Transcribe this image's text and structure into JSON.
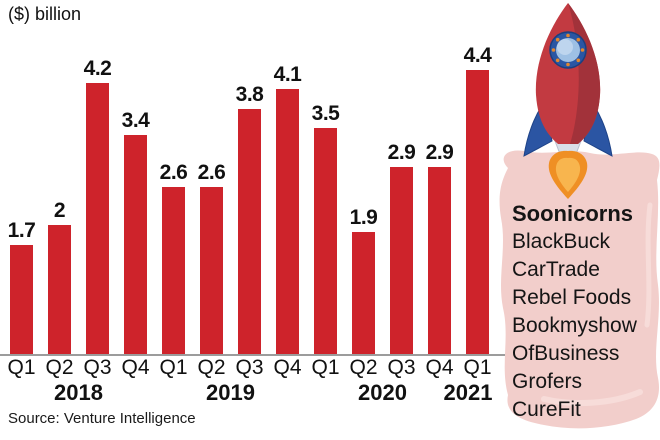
{
  "title": "($) billion",
  "source": "Source: Venture Intelligence",
  "chart_data": {
    "type": "bar",
    "title": "($) billion",
    "ylabel": "($) billion",
    "xlabel": "",
    "ylim": [
      0,
      4.6
    ],
    "grid": false,
    "legend": "none",
    "bar_color": "#ce232b",
    "groups": [
      {
        "year": "2018",
        "quarters": [
          "Q1",
          "Q2",
          "Q3",
          "Q4"
        ],
        "values": [
          1.7,
          2,
          4.2,
          3.4
        ]
      },
      {
        "year": "2019",
        "quarters": [
          "Q1",
          "Q2",
          "Q3",
          "Q4"
        ],
        "values": [
          2.6,
          2.6,
          3.8,
          4.1
        ]
      },
      {
        "year": "2020",
        "quarters": [
          "Q1",
          "Q2",
          "Q3",
          "Q4"
        ],
        "values": [
          3.5,
          1.9,
          2.9,
          2.9
        ]
      },
      {
        "year": "2021",
        "quarters": [
          "Q1"
        ],
        "values": [
          4.4
        ]
      }
    ]
  },
  "panel": {
    "heading": "Soonicorns",
    "companies": [
      "BlackBuck",
      "CarTrade",
      "Rebel Foods",
      "Bookmyshow",
      "OfBusiness",
      "Grofers",
      "CureFit"
    ],
    "background_color": "#f2cecb"
  },
  "illustration": {
    "name": "rocket-icon",
    "body_color": "#c23a41",
    "body_shade_color": "#a2323a",
    "fin_color": "#2b55a3",
    "porthole_ring_color": "#2a56a3",
    "window_color": "#9ec0e4",
    "bolt_color": "#e2872e",
    "flame_outer_color": "#ef8f24",
    "flame_inner_color": "#f8b54e"
  }
}
